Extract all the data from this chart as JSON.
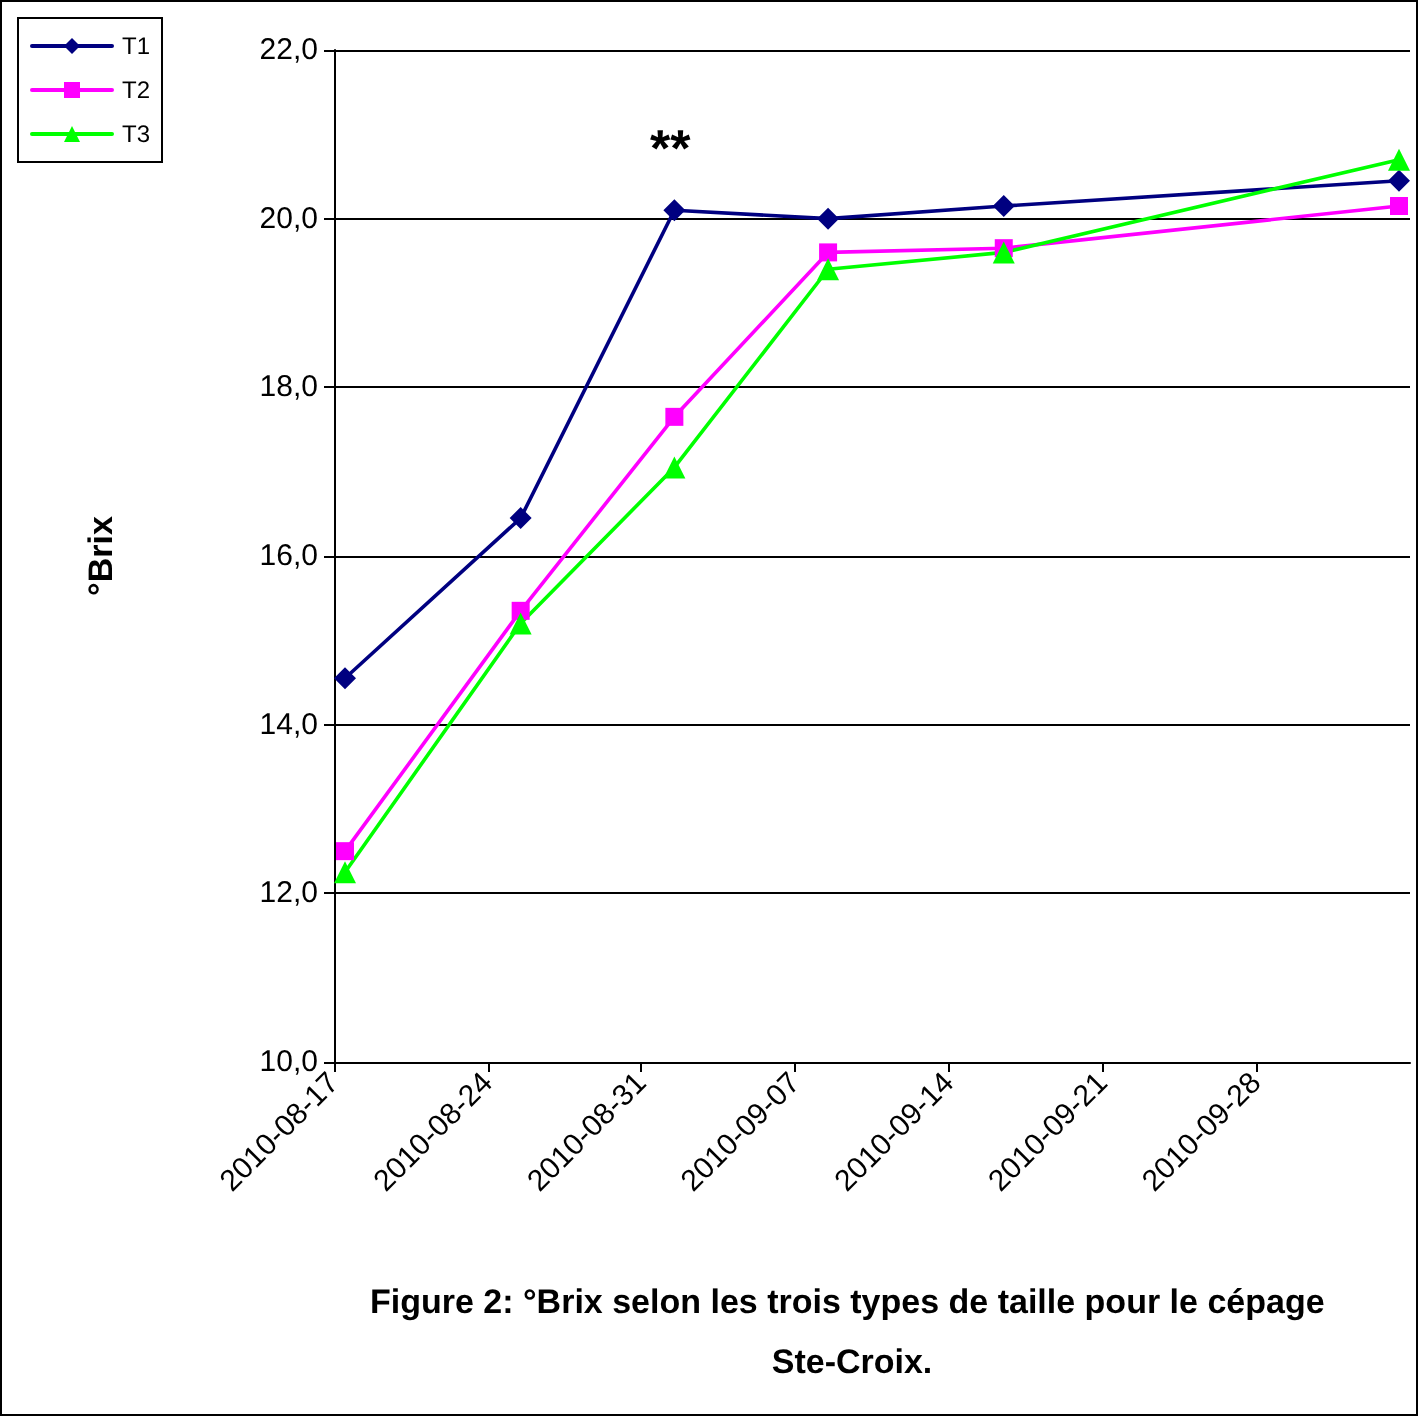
{
  "chart_data": {
    "type": "line",
    "title": "Figure 2: °Brix selon les trois types de taille pour le cépage Ste-Croix.",
    "ylabel": "°Brix",
    "x": [
      "2010-08-17T12:00",
      "2010-08-25T12:00",
      "2010-09-01T12:00",
      "2010-09-08T12:00",
      "2010-09-16T12:00",
      "2010-10-04T12:00"
    ],
    "series": [
      {
        "name": "T1",
        "color": "#000080",
        "marker": "diamond",
        "values": [
          14.55,
          16.45,
          20.1,
          20.0,
          20.15,
          20.45
        ]
      },
      {
        "name": "T2",
        "color": "#ff00ff",
        "marker": "square",
        "values": [
          12.5,
          15.35,
          17.65,
          19.6,
          19.65,
          20.15
        ]
      },
      {
        "name": "T3",
        "color": "#00ff00",
        "marker": "triangle",
        "values": [
          12.25,
          15.2,
          17.05,
          19.4,
          19.6,
          20.7
        ]
      }
    ],
    "xlim": [
      "2010-08-17",
      "2010-10-05"
    ],
    "xticks": [
      "2010-08-17",
      "2010-08-24",
      "2010-08-31",
      "2010-09-07",
      "2010-09-14",
      "2010-09-21",
      "2010-09-28"
    ],
    "ylim": [
      10,
      22
    ],
    "yticks": [
      {
        "value": 10,
        "label": "10,0"
      },
      {
        "value": 12,
        "label": "12,0"
      },
      {
        "value": 14,
        "label": "14,0"
      },
      {
        "value": 16,
        "label": "16,0"
      },
      {
        "value": 18,
        "label": "18,0"
      },
      {
        "value": 20,
        "label": "20,0"
      },
      {
        "value": 22,
        "label": "22,0"
      }
    ],
    "annotations": [
      "**"
    ],
    "grid": "y",
    "legend": "top left",
    "line_style": "solid"
  }
}
